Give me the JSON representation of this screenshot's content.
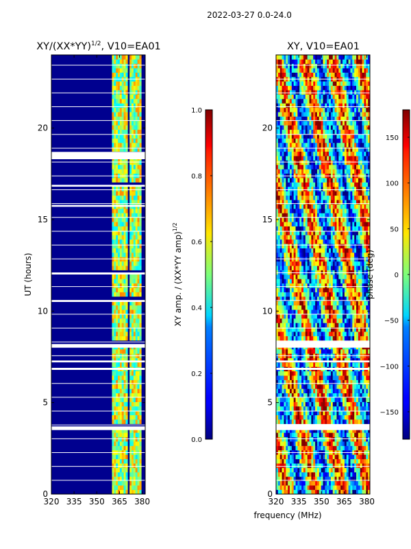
{
  "figure": {
    "suptitle": "2022-03-27 0.0-24.0",
    "shared_xlabel": "frequency (MHz)"
  },
  "chart_data": [
    {
      "type": "heatmap",
      "title_main": "XY/(XX*YY)",
      "title_exp": "1/2",
      "title_suffix": ", V10=EA01",
      "xlabel": "",
      "ylabel": "UT (hours)",
      "xlim": [
        320,
        382
      ],
      "ylim": [
        0,
        24
      ],
      "xticks": [
        320,
        335,
        350,
        365,
        380
      ],
      "yticks": [
        0,
        5,
        10,
        15,
        20
      ],
      "colormap": "jet",
      "clim": [
        0.0,
        1.0
      ],
      "colorbar": {
        "label_main": "XY amp. / (XX*YY amp)",
        "label_exp": "1/2",
        "ticks": [
          "0.0",
          "0.2",
          "0.4",
          "0.6",
          "0.8",
          "1.0"
        ],
        "tick_values": [
          0.0,
          0.2,
          0.4,
          0.6,
          0.8,
          1.0
        ]
      },
      "bright_bands_mhz": [
        [
          360,
          362
        ],
        [
          363,
          366
        ],
        [
          367,
          371
        ],
        [
          372,
          375
        ],
        [
          376,
          380
        ]
      ],
      "blank_bands_ut": [
        [
          18.3,
          18.7
        ],
        [
          16.8,
          16.9
        ],
        [
          15.7,
          15.8
        ],
        [
          12.0,
          12.1
        ],
        [
          10.5,
          10.6
        ],
        [
          8.0,
          8.2
        ],
        [
          7.2,
          7.3
        ],
        [
          6.8,
          6.9
        ],
        [
          3.5,
          3.7
        ]
      ]
    },
    {
      "type": "heatmap",
      "title_main": "XY, V10=EA01",
      "xlabel": "frequency (MHz)",
      "ylabel": "",
      "xlim": [
        320,
        382
      ],
      "ylim": [
        0,
        24
      ],
      "xticks": [
        320,
        335,
        350,
        365,
        380
      ],
      "yticks": [
        0,
        5,
        10,
        15,
        20
      ],
      "colormap": "jet",
      "clim": [
        -180,
        180
      ],
      "colorbar": {
        "label_main": "phase (deg)",
        "ticks": [
          "150",
          "100",
          "50",
          "0",
          "−50",
          "−100",
          "−150"
        ],
        "tick_values": [
          150,
          100,
          50,
          0,
          -50,
          -100,
          -150
        ]
      },
      "blank_bands_ut": [
        [
          8.0,
          8.2
        ],
        [
          7.2,
          7.3
        ],
        [
          6.8,
          6.9
        ],
        [
          3.5,
          3.7
        ]
      ]
    }
  ]
}
